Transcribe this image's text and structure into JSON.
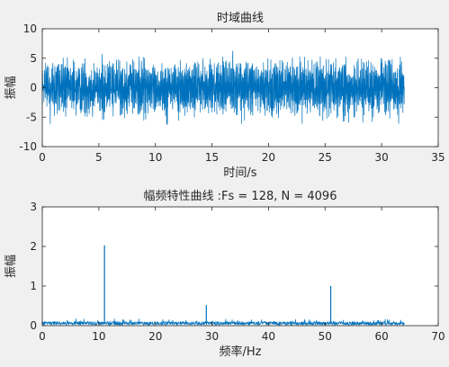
{
  "window": {
    "background": "#f0f0f0"
  },
  "chart_data": [
    {
      "type": "line",
      "title": "时域曲线",
      "xlabel": "时间/s",
      "ylabel": "振幅",
      "xlim": [
        0,
        35
      ],
      "ylim": [
        -10,
        10
      ],
      "xticks": [
        0,
        5,
        10,
        15,
        20,
        25,
        30,
        35
      ],
      "yticks": [
        -10,
        -5,
        0,
        5,
        10
      ],
      "grid": false,
      "series": [
        {
          "color": "#0072bd",
          "description": "dense noisy signal from t=0 to 32 s with amplitude roughly between -7 and 7",
          "x_range": [
            0,
            32
          ],
          "y_range": [
            -7,
            7
          ]
        }
      ]
    },
    {
      "type": "line",
      "title": "幅频特性曲线 :Fs = 128, N = 4096",
      "xlabel": "频率/Hz",
      "ylabel": "振幅",
      "xlim": [
        0,
        70
      ],
      "ylim": [
        0,
        3
      ],
      "xticks": [
        0,
        10,
        20,
        30,
        40,
        50,
        60,
        70
      ],
      "yticks": [
        0,
        1,
        2,
        3
      ],
      "grid": false,
      "series": [
        {
          "color": "#0072bd",
          "x_range": [
            0,
            64
          ],
          "noise_floor": 0.1,
          "peaks": [
            {
              "x": 11,
              "y": 2.03
            },
            {
              "x": 29,
              "y": 0.52
            },
            {
              "x": 51,
              "y": 1.0
            }
          ]
        }
      ]
    }
  ]
}
